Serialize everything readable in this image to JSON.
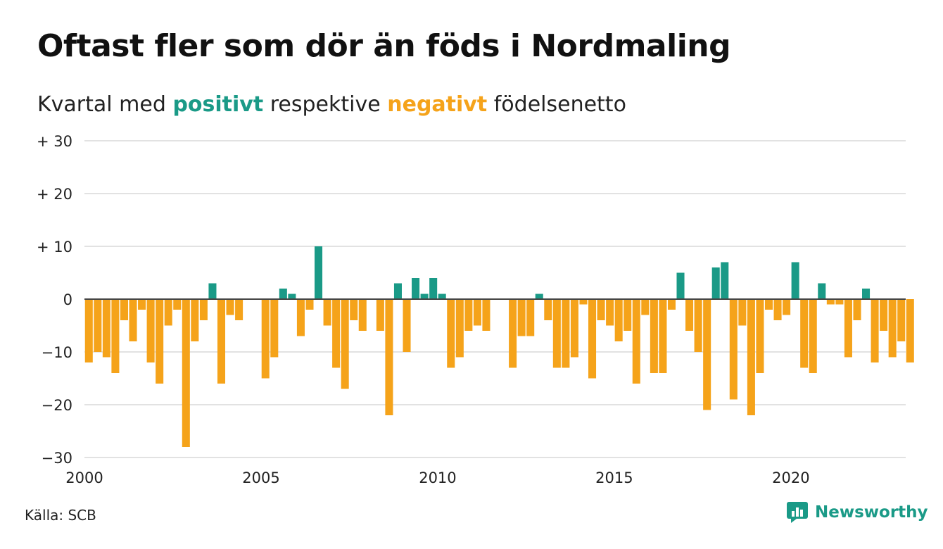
{
  "header": {
    "title": "Oftast fler som dör än föds i Nordmaling",
    "subtitle_prefix": "Kvartal med",
    "subtitle_positive": "positivt",
    "subtitle_middle": "respektive",
    "subtitle_negative": "negativt",
    "subtitle_suffix": "födelsenetto"
  },
  "footer": {
    "source": "Källa: SCB",
    "brand": "Newsworthy",
    "brand_icon": "bar-chart-logo-icon"
  },
  "colors": {
    "positive": "#1a9a87",
    "negative": "#f5a31a",
    "grid": "#e2e2e2",
    "baseline": "#444444"
  },
  "chart_data": {
    "type": "bar",
    "title": "Oftast fler som dör än föds i Nordmaling",
    "subtitle": "Kvartal med positivt respektive negativt födelsenetto",
    "xlabel": "",
    "ylabel": "",
    "x_start": 2000,
    "periods_per_year": 4,
    "xlim": [
      2000,
      2023.25
    ],
    "ylim": [
      -30,
      30
    ],
    "yticks": [
      30,
      20,
      10,
      0,
      -10,
      -20,
      -30
    ],
    "ytick_labels": [
      "+ 30",
      "+ 20",
      "+ 10",
      "0",
      "−10",
      "−20",
      "−30"
    ],
    "xticks": [
      2000,
      2005,
      2010,
      2015,
      2020
    ],
    "xtick_labels": [
      "2000",
      "2005",
      "2010",
      "2015",
      "2020"
    ],
    "grid": true,
    "values": [
      -12,
      -10,
      -11,
      -14,
      -4,
      -8,
      -2,
      -12,
      -16,
      -5,
      -2,
      -28,
      -8,
      -4,
      3,
      -16,
      -3,
      -4,
      0,
      0,
      -15,
      -11,
      2,
      1,
      -7,
      -2,
      10,
      -5,
      -13,
      -17,
      -4,
      -6,
      0,
      -6,
      -22,
      3,
      -10,
      4,
      1,
      4,
      1,
      -13,
      -11,
      -6,
      -5,
      -6,
      0,
      0,
      -13,
      -7,
      -7,
      1,
      -4,
      -13,
      -13,
      -11,
      -1,
      -15,
      -4,
      -5,
      -8,
      -6,
      -16,
      -3,
      -14,
      -14,
      -2,
      5,
      -6,
      -10,
      -21,
      6,
      7,
      -19,
      -5,
      -22,
      -14,
      -2,
      -4,
      -3,
      7,
      -13,
      -14,
      3,
      -1,
      -1,
      -11,
      -4,
      2,
      -12,
      -6,
      -11,
      -8,
      -12
    ]
  }
}
